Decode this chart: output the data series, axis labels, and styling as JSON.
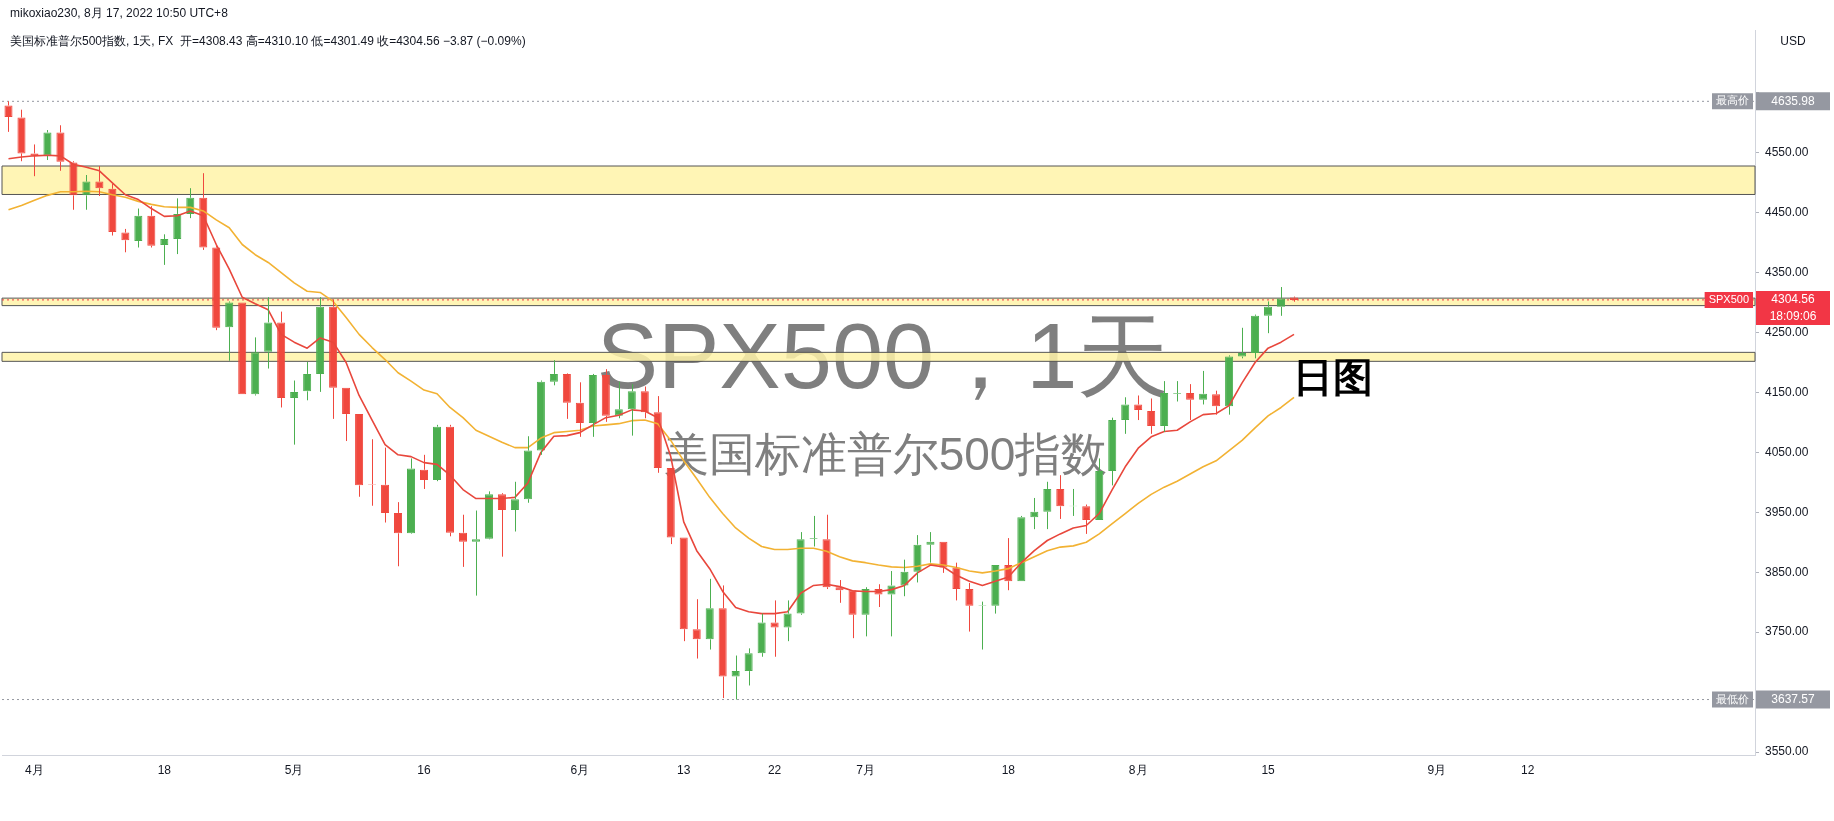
{
  "chart_data": {
    "type": "candlestick",
    "title": "SPX500，1天",
    "subtitle": "美国标准普尔500指数",
    "ylabel": "USD",
    "annotations": [
      "mikoxiao230, 8月 17, 2022 10:50 UTC+8",
      "美国标准普尔500指数, 1天, FX  开=4308.43 高=4310.10 低=4301.49 收=4304.56 −3.87 (−0.09%)",
      "日图",
      "18:09:06",
      "4635.98",
      "3637.57",
      "4304.56"
    ],
    "categories": [
      null,
      null,
      "4月",
      null,
      null,
      null,
      null,
      null,
      null,
      null,
      null,
      null,
      "18",
      null,
      null,
      null,
      null,
      null,
      null,
      null,
      null,
      null,
      "5月",
      null,
      null,
      null,
      null,
      null,
      null,
      null,
      null,
      null,
      "16",
      null,
      null,
      null,
      null,
      null,
      null,
      null,
      null,
      null,
      null,
      null,
      "6月",
      null,
      null,
      null,
      null,
      null,
      null,
      null,
      "13",
      null,
      null,
      null,
      null,
      null,
      null,
      "22",
      null,
      null,
      null,
      null,
      null,
      null,
      "7月",
      null,
      null,
      null,
      null,
      null,
      null,
      null,
      null,
      null,
      null,
      "18",
      null,
      null,
      null,
      null,
      null,
      null,
      null,
      null,
      null,
      "8月",
      null,
      null,
      null,
      null,
      null,
      null,
      null,
      null,
      null,
      "15",
      null,
      null,
      null,
      null,
      null,
      null,
      null,
      null,
      null,
      null,
      null,
      null,
      "9月",
      null,
      null,
      null,
      null,
      null,
      null,
      "12",
      null,
      null,
      null,
      null,
      null,
      null,
      null,
      null,
      null,
      null,
      null,
      null,
      null,
      null,
      null,
      null,
      null
    ],
    "ohlc": [
      [
        4629,
        4635.98,
        4585,
        4610
      ],
      [
        4609,
        4622,
        4536,
        4549
      ],
      [
        4549,
        4564,
        4511,
        4545
      ],
      [
        4545,
        4588,
        4538,
        4584
      ],
      [
        4584,
        4596,
        4520,
        4535
      ],
      [
        4534,
        4536,
        4455,
        4479
      ],
      [
        4479,
        4513,
        4455,
        4502
      ],
      [
        4502,
        4528,
        4478,
        4491
      ],
      [
        4490,
        4498,
        4412,
        4418
      ],
      [
        4417,
        4423,
        4384,
        4404
      ],
      [
        4403,
        4457,
        4392,
        4445
      ],
      [
        4445,
        4461,
        4392,
        4395
      ],
      [
        4396,
        4414,
        4363,
        4406
      ],
      [
        4406,
        4474,
        4381,
        4448
      ],
      [
        4448,
        4491,
        4441,
        4475
      ],
      [
        4475,
        4516,
        4388,
        4392
      ],
      [
        4392,
        4397,
        4254,
        4258
      ],
      [
        4259,
        4302,
        4203,
        4300
      ],
      [
        4300,
        4300,
        4147,
        4147
      ],
      [
        4147,
        4242,
        4145,
        4217
      ],
      [
        4218,
        4309,
        4190,
        4267
      ],
      [
        4267,
        4285,
        4125,
        4141
      ],
      [
        4141,
        4170,
        4063,
        4151
      ],
      [
        4152,
        4201,
        4137,
        4181
      ],
      [
        4181,
        4309,
        4151,
        4293
      ],
      [
        4293,
        4305,
        4106,
        4158
      ],
      [
        4158,
        4158,
        4069,
        4114
      ],
      [
        4114,
        4114,
        3976,
        3995
      ],
      [
        3997,
        4072,
        3961,
        3996
      ],
      [
        3996,
        4058,
        3933,
        3949
      ],
      [
        3949,
        3967,
        3860,
        3915
      ],
      [
        3915,
        4040,
        3914,
        4023
      ],
      [
        4021,
        4046,
        3989,
        4004
      ],
      [
        4004,
        4096,
        4002,
        4093
      ],
      [
        4093,
        4096,
        3910,
        3916
      ],
      [
        3916,
        3946,
        3859,
        3901
      ],
      [
        3901,
        3953,
        3811,
        3905
      ],
      [
        3906,
        3985,
        3905,
        3980
      ],
      [
        3980,
        3982,
        3876,
        3954
      ],
      [
        3954,
        4001,
        3918,
        3972
      ],
      [
        3972,
        4077,
        3966,
        4053
      ],
      [
        4053,
        4170,
        4046,
        4168
      ],
      [
        4168,
        4204,
        4162,
        4181
      ],
      [
        4181,
        4182,
        4106,
        4133
      ],
      [
        4133,
        4167,
        4076,
        4099
      ],
      [
        4099,
        4181,
        4076,
        4179
      ],
      [
        4179,
        4189,
        4101,
        4111
      ],
      [
        4111,
        4168,
        4107,
        4122
      ],
      [
        4122,
        4164,
        4078,
        4152
      ],
      [
        4152,
        4160,
        4107,
        4117
      ],
      [
        4117,
        4144,
        4016,
        4024
      ],
      [
        4024,
        4024,
        3897,
        3908
      ],
      [
        3908,
        3908,
        3735,
        3755
      ],
      [
        3755,
        3805,
        3706,
        3738
      ],
      [
        3738,
        3839,
        3721,
        3790
      ],
      [
        3790,
        3828,
        3640,
        3676
      ],
      [
        3676,
        3711,
        3637.57,
        3685
      ],
      [
        3685,
        3723,
        3661,
        3715
      ],
      [
        3715,
        3781,
        3709,
        3766
      ],
      [
        3766,
        3803,
        3709,
        3758
      ],
      [
        3758,
        3803,
        3735,
        3781
      ],
      [
        3781,
        3917,
        3779,
        3905
      ],
      [
        3906,
        3944,
        3893,
        3907
      ],
      [
        3905,
        3946,
        3822,
        3825
      ],
      [
        3825,
        3837,
        3799,
        3820
      ],
      [
        3820,
        3820,
        3740,
        3779
      ],
      [
        3779,
        3825,
        3743,
        3822
      ],
      [
        3822,
        3830,
        3792,
        3813
      ],
      [
        3813,
        3852,
        3743,
        3828
      ],
      [
        3828,
        3871,
        3810,
        3851
      ],
      [
        3851,
        3912,
        3833,
        3896
      ],
      [
        3896,
        3917,
        3866,
        3901
      ],
      [
        3901,
        3901,
        3849,
        3858
      ],
      [
        3858,
        3866,
        3803,
        3822
      ],
      [
        3822,
        3832,
        3751,
        3794
      ],
      [
        3794,
        3801,
        3721,
        3795
      ],
      [
        3794,
        3862,
        3781,
        3862
      ],
      [
        3862,
        3907,
        3820,
        3835
      ],
      [
        3835,
        3944,
        3835,
        3942
      ],
      [
        3942,
        3974,
        3922,
        3951
      ],
      [
        3951,
        4001,
        3922,
        3989
      ],
      [
        3989,
        4012,
        3939,
        3960
      ],
      [
        3960,
        3989,
        3944,
        3961
      ],
      [
        3960,
        3963,
        3914,
        3937
      ],
      [
        3937,
        4040,
        3937,
        4019
      ],
      [
        4019,
        4108,
        3995,
        4104
      ],
      [
        4104,
        4142,
        4081,
        4130
      ],
      [
        4130,
        4145,
        4104,
        4121
      ],
      [
        4119,
        4140,
        4081,
        4094
      ],
      [
        4094,
        4169,
        4084,
        4149
      ],
      [
        4148,
        4169,
        4135,
        4149
      ],
      [
        4149,
        4164,
        4104,
        4138
      ],
      [
        4138,
        4186,
        4130,
        4148
      ],
      [
        4147,
        4153,
        4113,
        4127
      ],
      [
        4127,
        4212,
        4113,
        4210
      ],
      [
        4210,
        4258,
        4207,
        4216
      ],
      [
        4216,
        4280,
        4207,
        4278
      ],
      [
        4278,
        4302,
        4249,
        4293
      ],
      [
        4293,
        4326,
        4278,
        4307
      ],
      [
        4308.43,
        4310.1,
        4301.49,
        4304.56
      ],
      null,
      null,
      null,
      null,
      null,
      null,
      null,
      null,
      null,
      null,
      null,
      null,
      null,
      null,
      null,
      null,
      null,
      null,
      null,
      null,
      null,
      null,
      null,
      null,
      null,
      null,
      null,
      null,
      null,
      null,
      null,
      null,
      null,
      null,
      null
    ],
    "colors": [
      "#f0483e",
      "#f0483e",
      "#f0483e",
      "#4caf50",
      "#f0483e",
      "#f0483e",
      "#4caf50",
      "#f0483e",
      "#f0483e",
      "#f0483e",
      "#4caf50",
      "#f0483e",
      "#4caf50",
      "#4caf50",
      "#4caf50",
      "#f0483e",
      "#f0483e",
      "#4caf50",
      "#f0483e",
      "#4caf50",
      "#4caf50",
      "#f0483e",
      "#4caf50",
      "#4caf50",
      "#4caf50",
      "#f0483e",
      "#f0483e",
      "#f0483e",
      "#f0483e",
      "#f0483e",
      "#f0483e",
      "#4caf50",
      "#f0483e",
      "#4caf50",
      "#f0483e",
      "#f0483e",
      "#4caf50",
      "#4caf50",
      "#f0483e",
      "#4caf50",
      "#4caf50",
      "#4caf50",
      "#4caf50",
      "#f0483e",
      "#f0483e",
      "#4caf50",
      "#f0483e",
      "#4caf50",
      "#4caf50",
      "#f0483e",
      "#f0483e",
      "#f0483e",
      "#f0483e",
      "#f0483e",
      "#4caf50",
      "#f0483e",
      "#4caf50",
      "#4caf50",
      "#4caf50",
      "#f0483e",
      "#4caf50",
      "#4caf50",
      "#4caf50",
      "#f0483e",
      "#f0483e",
      "#f0483e",
      "#4caf50",
      "#f0483e",
      "#4caf50",
      "#4caf50",
      "#4caf50",
      "#4caf50",
      "#f0483e",
      "#f0483e",
      "#f0483e",
      "#4caf50",
      "#4caf50",
      "#f0483e",
      "#4caf50",
      "#4caf50",
      "#4caf50",
      "#f0483e",
      "#4caf50",
      "#f0483e",
      "#4caf50",
      "#4caf50",
      "#4caf50",
      "#f0483e",
      "#f0483e",
      "#4caf50",
      "#4caf50",
      "#f0483e",
      "#4caf50",
      "#f0483e",
      "#4caf50",
      "#4caf50",
      "#4caf50",
      "#4caf50",
      "#4caf50",
      "#f0483e",
      null,
      null,
      null,
      null,
      null,
      null,
      null,
      null,
      null,
      null,
      null,
      null,
      null,
      null,
      null,
      null,
      null,
      null,
      null,
      null,
      null,
      null,
      null,
      null,
      null,
      null,
      null,
      null,
      null,
      null,
      null,
      null,
      null,
      null,
      null
    ],
    "series": [
      {
        "type": "line",
        "color": "#e8473c",
        "values": [
          4540,
          4543,
          4545,
          4546,
          4545,
          4531,
          4526,
          4520,
          4500,
          4480,
          4472,
          4457,
          4444,
          4445,
          4453,
          4445,
          4397,
          4356,
          4309,
          4298,
          4288,
          4247,
          4234,
          4224,
          4241,
          4234,
          4200,
          4145,
          4104,
          4063,
          4046,
          4043,
          4033,
          4030,
          4012,
          3988,
          3973,
          3973,
          3973,
          3975,
          3999,
          4050,
          4077,
          4078,
          4083,
          4096,
          4108,
          4112,
          4121,
          4119,
          4108,
          4043,
          3934,
          3886,
          3856,
          3818,
          3791,
          3784,
          3781,
          3781,
          3784,
          3815,
          3828,
          3830,
          3826,
          3819,
          3818,
          3818,
          3821,
          3828,
          3849,
          3862,
          3859,
          3845,
          3835,
          3828,
          3835,
          3842,
          3866,
          3886,
          3903,
          3914,
          3924,
          3928,
          3948,
          3988,
          4026,
          4057,
          4076,
          4085,
          4087,
          4101,
          4113,
          4115,
          4128,
          4166,
          4200,
          4224,
          4234,
          4247,
          null,
          null,
          null,
          null,
          null,
          null,
          null,
          null,
          null,
          null,
          null,
          null,
          null,
          null,
          null,
          null,
          null,
          null,
          null,
          null,
          null,
          null,
          null,
          null,
          null,
          null,
          null,
          null,
          null,
          null,
          null,
          null,
          null,
          null,
          null
        ]
      },
      {
        "type": "line",
        "color": "#f2b233",
        "values": [
          4455,
          4462,
          4471,
          4479,
          4485,
          4485,
          4486,
          4485,
          4480,
          4476,
          4469,
          4464,
          4460,
          4459,
          4459,
          4453,
          4438,
          4425,
          4397,
          4380,
          4367,
          4350,
          4333,
          4319,
          4317,
          4302,
          4275,
          4247,
          4225,
          4205,
          4183,
          4169,
          4154,
          4148,
          4125,
          4108,
          4087,
          4077,
          4067,
          4058,
          4058,
          4074,
          4083,
          4085,
          4087,
          4094,
          4096,
          4098,
          4103,
          4104,
          4098,
          4070,
          4036,
          4006,
          3975,
          3948,
          3924,
          3907,
          3893,
          3888,
          3888,
          3890,
          3890,
          3885,
          3876,
          3869,
          3866,
          3862,
          3859,
          3858,
          3860,
          3864,
          3862,
          3858,
          3852,
          3849,
          3852,
          3856,
          3866,
          3876,
          3886,
          3892,
          3894,
          3900,
          3914,
          3931,
          3948,
          3965,
          3980,
          3992,
          4002,
          4014,
          4026,
          4036,
          4053,
          4070,
          4091,
          4111,
          4125,
          4142,
          null,
          null,
          null,
          null,
          null,
          null,
          null,
          null,
          null,
          null,
          null,
          null,
          null,
          null,
          null,
          null,
          null,
          null,
          null,
          null,
          null,
          null,
          null,
          null,
          null,
          null,
          null,
          null,
          null,
          null,
          null,
          null,
          null,
          null,
          null
        ]
      }
    ],
    "ylim": [
      3545,
      4755
    ],
    "yticks": [
      {
        "value": 3550,
        "label": "3550.00"
      },
      {
        "value": 3650,
        "label": null
      },
      {
        "value": 3750,
        "label": "3750.00"
      },
      {
        "value": 3850,
        "label": "3850.00"
      },
      {
        "value": 3950,
        "label": "3950.00"
      },
      {
        "value": 4050,
        "label": "4050.00"
      },
      {
        "value": 4150,
        "label": "4150.00"
      },
      {
        "value": 4250,
        "label": "4250.00"
      },
      {
        "value": 4350,
        "label": "4350.00"
      },
      {
        "value": 4450,
        "label": "4450.00"
      },
      {
        "value": 4550,
        "label": "4550.00"
      },
      {
        "value": 4650,
        "label": null
      }
    ],
    "ref_lines": [
      {
        "axis": "y",
        "value": 4635.98,
        "label": "最高价",
        "color": "#9598a1",
        "line_style": "dotted"
      },
      {
        "axis": "y",
        "value": 3637.57,
        "label": "最低价",
        "color": "#9598a1",
        "line_style": "dotted"
      },
      {
        "axis": "y",
        "value": 4304.56,
        "label": "SPX500",
        "color": "#f23645",
        "line_style": "dotted"
      }
    ],
    "bands": [
      {
        "axis": "y",
        "from": 4480.5,
        "to": 4528,
        "color": "#fff3a8"
      },
      {
        "axis": "y",
        "from": 4295,
        "to": 4307.5,
        "color": "#fff3a8"
      },
      {
        "axis": "y",
        "from": 4202,
        "to": 4217,
        "color": "#fff3a8"
      }
    ]
  }
}
